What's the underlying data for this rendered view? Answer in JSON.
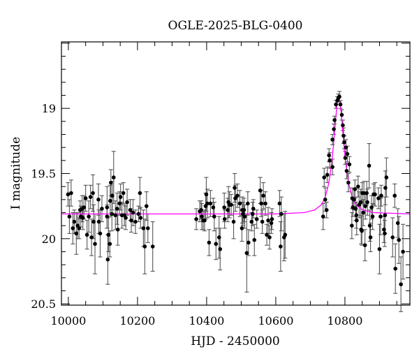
{
  "chart_data": {
    "type": "scatter",
    "title": "OGLE-2025-BLG-0400",
    "xlabel": "HJD - 2450000",
    "ylabel": "I magnitude",
    "xlim": [
      9980,
      10988
    ],
    "ylim": [
      20.51,
      18.49
    ],
    "y_inverted": true,
    "xticks": [
      10000,
      10200,
      10400,
      10600,
      10800
    ],
    "xtick_labels": [
      "10000",
      "10200",
      "10400",
      "10600",
      "10800"
    ],
    "yticks": [
      19,
      19.5,
      20,
      20.5
    ],
    "ytick_labels": [
      "19",
      "19.5",
      "20",
      "20.5"
    ],
    "grid": false,
    "colors": {
      "data": "#000000",
      "model": "#ff00ff",
      "errorbar": "#555555"
    },
    "series": [
      {
        "kind": "data-with-errorbars",
        "points": [
          [
            9999,
            19.66,
            0.09
          ],
          [
            10008,
            19.65,
            0.1
          ],
          [
            10003,
            19.83,
            0.13
          ],
          [
            10017,
            19.87,
            0.09
          ],
          [
            10013,
            19.92,
            0.12
          ],
          [
            10023,
            19.96,
            0.16
          ],
          [
            10027,
            19.9,
            0.1
          ],
          [
            10031,
            19.92,
            0.08
          ],
          [
            10034,
            19.78,
            0.07
          ],
          [
            10036,
            19.83,
            0.08
          ],
          [
            10042,
            19.84,
            0.09
          ],
          [
            10040,
            19.77,
            0.1
          ],
          [
            10045,
            19.76,
            0.09
          ],
          [
            10050,
            19.69,
            0.1
          ],
          [
            10054,
            19.97,
            0.11
          ],
          [
            10059,
            19.83,
            0.12
          ],
          [
            10064,
            19.68,
            0.09
          ],
          [
            10067,
            19.99,
            0.14
          ],
          [
            10071,
            19.65,
            0.14
          ],
          [
            10073,
            19.87,
            0.13
          ],
          [
            10077,
            20.04,
            0.23
          ],
          [
            10087,
            19.7,
            0.12
          ],
          [
            10088,
            19.87,
            0.09
          ],
          [
            10092,
            19.96,
            0.18
          ],
          [
            10097,
            19.77,
            0.1
          ],
          [
            10112,
            19.76,
            0.16
          ],
          [
            10112,
            19.83,
            0.09
          ],
          [
            10114,
            20.16,
            0.19
          ],
          [
            10116,
            19.97,
            0.13
          ],
          [
            10120,
            20.04,
            0.1
          ],
          [
            10121,
            19.71,
            0.12
          ],
          [
            10123,
            19.57,
            0.1
          ],
          [
            10127,
            19.67,
            0.11
          ],
          [
            10131,
            19.53,
            0.2
          ],
          [
            10126,
            19.81,
            0.13
          ],
          [
            10136,
            19.82,
            0.11
          ],
          [
            10141,
            19.77,
            0.12
          ],
          [
            10143,
            19.93,
            0.12
          ],
          [
            10148,
            19.73,
            0.09
          ],
          [
            10151,
            19.68,
            0.1
          ],
          [
            10155,
            19.82,
            0.1
          ],
          [
            10159,
            19.65,
            0.08
          ],
          [
            10162,
            19.82,
            0.08
          ],
          [
            10166,
            19.84,
            0.09
          ],
          [
            10170,
            19.72,
            0.1
          ],
          [
            10179,
            19.78,
            0.08
          ],
          [
            10182,
            19.86,
            0.09
          ],
          [
            10187,
            19.8,
            0.1
          ],
          [
            10194,
            19.87,
            0.09
          ],
          [
            10203,
            19.81,
            0.06
          ],
          [
            10207,
            19.65,
            0.12
          ],
          [
            10209,
            19.84,
            0.08
          ],
          [
            10217,
            19.92,
            0.14
          ],
          [
            10221,
            20.06,
            0.21
          ],
          [
            10226,
            19.75,
            0.11
          ],
          [
            10230,
            19.92,
            0.11
          ],
          [
            10244,
            20.06,
            0.19
          ],
          [
            10370,
            19.85,
            0.08
          ],
          [
            10380,
            19.79,
            0.08
          ],
          [
            10384,
            19.78,
            0.07
          ],
          [
            10386,
            19.83,
            0.1
          ],
          [
            10390,
            19.86,
            0.07
          ],
          [
            10394,
            19.86,
            0.08
          ],
          [
            10397,
            19.75,
            0.1
          ],
          [
            10399,
            19.66,
            0.13
          ],
          [
            10402,
            19.73,
            0.11
          ],
          [
            10407,
            20.03,
            0.1
          ],
          [
            10411,
            19.73,
            0.1
          ],
          [
            10419,
            19.76,
            0.07
          ],
          [
            10422,
            19.83,
            0.11
          ],
          [
            10427,
            20.04,
            0.12
          ],
          [
            10436,
            19.99,
            0.16
          ],
          [
            10439,
            20.08,
            0.16
          ],
          [
            10451,
            19.76,
            0.11
          ],
          [
            10452,
            19.85,
            0.07
          ],
          [
            10461,
            19.78,
            0.09
          ],
          [
            10463,
            19.72,
            0.12
          ],
          [
            10466,
            19.74,
            0.1
          ],
          [
            10471,
            19.74,
            0.08
          ],
          [
            10478,
            19.87,
            0.13
          ],
          [
            10481,
            19.61,
            0.11
          ],
          [
            10483,
            19.69,
            0.1
          ],
          [
            10489,
            19.67,
            0.09
          ],
          [
            10496,
            19.73,
            0.1
          ],
          [
            10502,
            19.92,
            0.1
          ],
          [
            10503,
            19.78,
            0.1
          ],
          [
            10505,
            19.81,
            0.09
          ],
          [
            10508,
            19.78,
            0.09
          ],
          [
            10510,
            19.83,
            0.09
          ],
          [
            10516,
            20.11,
            0.3
          ],
          [
            10519,
            19.73,
            0.09
          ],
          [
            10521,
            20.03,
            0.1
          ],
          [
            10530,
            19.87,
            0.07
          ],
          [
            10533,
            19.81,
            0.09
          ],
          [
            10535,
            19.77,
            0.07
          ],
          [
            10538,
            20.01,
            0.12
          ],
          [
            10545,
            19.85,
            0.07
          ],
          [
            10555,
            19.63,
            0.1
          ],
          [
            10558,
            19.73,
            0.1
          ],
          [
            10561,
            19.87,
            0.09
          ],
          [
            10564,
            19.67,
            0.1
          ],
          [
            10570,
            19.73,
            0.09
          ],
          [
            10574,
            19.97,
            0.08
          ],
          [
            10578,
            19.86,
            0.1
          ],
          [
            10582,
            19.99,
            0.09
          ],
          [
            10587,
            19.88,
            0.08
          ],
          [
            10589,
            19.85,
            0.08
          ],
          [
            10611,
            19.73,
            0.1
          ],
          [
            10614,
            20.06,
            0.19
          ],
          [
            10616,
            19.81,
            0.13
          ],
          [
            10624,
            19.99,
            0.18
          ],
          [
            10627,
            19.97,
            0.18
          ],
          [
            10737,
            19.83,
            0.1
          ],
          [
            10740,
            19.53,
            0.07
          ],
          [
            10743,
            19.7,
            0.09
          ],
          [
            10747,
            19.78,
            0.06
          ],
          [
            10749,
            19.51,
            0.06
          ],
          [
            10754,
            19.36,
            0.05
          ],
          [
            10756,
            19.4,
            0.06
          ],
          [
            10764,
            19.45,
            0.06
          ],
          [
            10764,
            19.24,
            0.04
          ],
          [
            10768,
            19.16,
            0.04
          ],
          [
            10770,
            19.09,
            0.03
          ],
          [
            10774,
            18.97,
            0.03
          ],
          [
            10778,
            18.94,
            0.03
          ],
          [
            10781,
            18.92,
            0.03
          ],
          [
            10784,
            18.91,
            0.04
          ],
          [
            10787,
            18.97,
            0.03
          ],
          [
            10791,
            19.05,
            0.04
          ],
          [
            10794,
            19.13,
            0.04
          ],
          [
            10796,
            19.21,
            0.06
          ],
          [
            10798,
            19.26,
            0.05
          ],
          [
            10801,
            19.38,
            0.05
          ],
          [
            10803,
            19.3,
            0.06
          ],
          [
            10805,
            19.48,
            0.06
          ],
          [
            10807,
            19.35,
            0.06
          ],
          [
            10810,
            19.57,
            0.07
          ],
          [
            10813,
            19.43,
            0.06
          ],
          [
            10820,
            19.9,
            0.1
          ],
          [
            10821,
            19.69,
            0.08
          ],
          [
            10823,
            19.76,
            0.07
          ],
          [
            10826,
            19.7,
            0.08
          ],
          [
            10829,
            19.62,
            0.07
          ],
          [
            10831,
            19.77,
            0.09
          ],
          [
            10833,
            19.82,
            0.1
          ],
          [
            10834,
            19.86,
            0.11
          ],
          [
            10838,
            19.6,
            0.08
          ],
          [
            10841,
            19.74,
            0.1
          ],
          [
            10846,
            19.72,
            0.1
          ],
          [
            10847,
            19.93,
            0.11
          ],
          [
            10849,
            19.94,
            0.11
          ],
          [
            10850,
            19.65,
            0.08
          ],
          [
            10853,
            19.8,
            0.1
          ],
          [
            10855,
            19.65,
            0.09
          ],
          [
            10858,
            20.05,
            0.12
          ],
          [
            10859,
            19.75,
            0.1
          ],
          [
            10863,
            19.65,
            0.09
          ],
          [
            10865,
            19.72,
            0.1
          ],
          [
            10870,
            19.44,
            0.17
          ],
          [
            10872,
            19.9,
            0.12
          ],
          [
            10874,
            19.99,
            0.11
          ],
          [
            10877,
            19.76,
            0.09
          ],
          [
            10880,
            19.83,
            0.1
          ],
          [
            10883,
            19.66,
            0.08
          ],
          [
            10887,
            19.66,
            0.09
          ],
          [
            10897,
            19.69,
            0.08
          ],
          [
            10900,
            20.08,
            0.19
          ],
          [
            10903,
            19.83,
            0.14
          ],
          [
            10905,
            19.67,
            0.08
          ],
          [
            10913,
            19.93,
            0.1
          ],
          [
            10915,
            19.96,
            0.1
          ],
          [
            10916,
            19.82,
            0.14
          ],
          [
            10917,
            19.61,
            0.13
          ],
          [
            10920,
            19.53,
            0.15
          ],
          [
            10938,
            19.99,
            0.15
          ],
          [
            10944,
            19.67,
            0.09
          ],
          [
            10946,
            20.23,
            0.19
          ],
          [
            10953,
            19.88,
            0.11
          ],
          [
            10956,
            20.01,
            0.18
          ],
          [
            10962,
            20.35,
            0.21
          ],
          [
            10968,
            20.1,
            0.21
          ]
        ]
      },
      {
        "kind": "model-curve",
        "points": [
          [
            9980,
            19.81
          ],
          [
            10600,
            19.81
          ],
          [
            10682,
            19.8
          ],
          [
            10712,
            19.78
          ],
          [
            10732,
            19.74
          ],
          [
            10742,
            19.69
          ],
          [
            10752,
            19.59
          ],
          [
            10757,
            19.51
          ],
          [
            10762,
            19.41
          ],
          [
            10767,
            19.28
          ],
          [
            10772,
            19.12
          ],
          [
            10777,
            18.97
          ],
          [
            10782,
            18.91
          ],
          [
            10787,
            18.97
          ],
          [
            10792,
            19.12
          ],
          [
            10797,
            19.28
          ],
          [
            10802,
            19.41
          ],
          [
            10807,
            19.51
          ],
          [
            10812,
            19.59
          ],
          [
            10822,
            19.69
          ],
          [
            10832,
            19.74
          ],
          [
            10852,
            19.78
          ],
          [
            10882,
            19.8
          ],
          [
            10988,
            19.81
          ]
        ]
      }
    ]
  }
}
